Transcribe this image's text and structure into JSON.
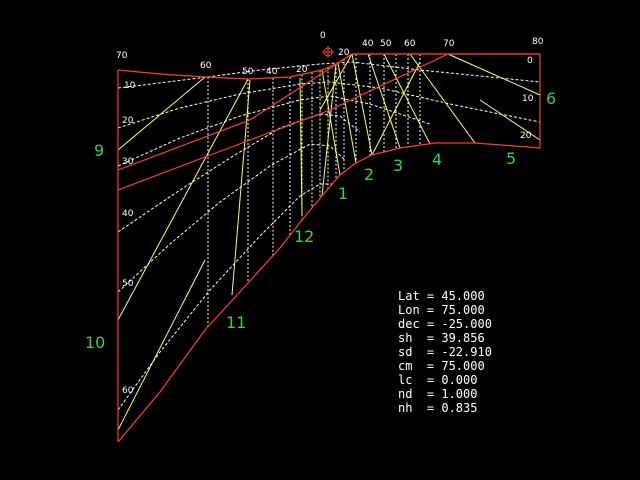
{
  "colors": {
    "background": "#000000",
    "boundary": "#ff3b3b",
    "hour_line": "#ffff66",
    "altitude_curve": "#ffffff",
    "hour_label": "#3fcf3f",
    "tick_label": "#ffffff",
    "marker": "#ff3b3b"
  },
  "top_ticks": [
    "70",
    "60",
    "50",
    "40",
    "20",
    "0",
    "20",
    "40",
    "50",
    "60",
    "70",
    "80"
  ],
  "left_ticks": [
    "10",
    "20",
    "30",
    "40",
    "50",
    "60"
  ],
  "right_ticks": [
    "0",
    "10",
    "20"
  ],
  "hour_labels": [
    "9",
    "10",
    "11",
    "12",
    "1",
    "2",
    "3",
    "4",
    "5",
    "6"
  ],
  "readout": [
    "Lat = 45.000",
    "Lon = 75.000",
    "dec = -25.000",
    "sh  = 39.856",
    "sd  = -22.910",
    "cm  = 75.000",
    "lc  = 0.000",
    "nd  = 1.000",
    "nh  = 0.835"
  ],
  "marker_icon": "crosshair-circle-icon"
}
